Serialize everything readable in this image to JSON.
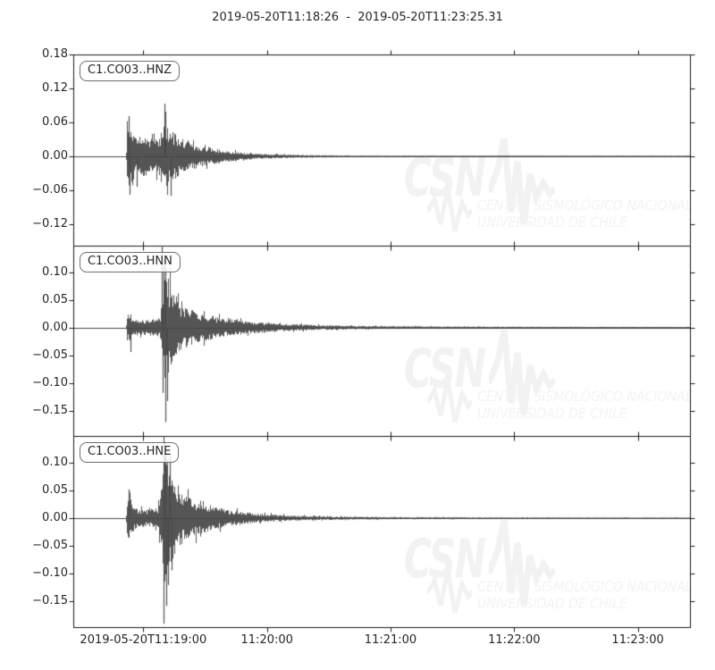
{
  "figure": {
    "title": "2019-05-20T11:18:26  -  2019-05-20T11:23:25.31"
  },
  "watermark": {
    "brand": "CSN",
    "line1": "CENTRO SISMOLÓGICO NACIONAL",
    "line2": "UNIVERSIDAD DE CHILE",
    "color": "#f2f2f2"
  },
  "colors": {
    "trace": "#474747",
    "frame": "#1a1a1a",
    "text": "#262626"
  },
  "chart_data": {
    "type": "line",
    "title": "2019-05-20T11:18:26  -  2019-05-20T11:23:25.31",
    "x_start": "2019-05-20T11:18:26",
    "x_end": "2019-05-20T11:23:25.31",
    "duration_seconds": 299.31,
    "x_ticks": [
      {
        "label": "2019-05-20T11:19:00",
        "t": 0.1136
      },
      {
        "label": "11:20:00",
        "t": 0.3141
      },
      {
        "label": "11:21:00",
        "t": 0.5145
      },
      {
        "label": "11:22:00",
        "t": 0.715
      },
      {
        "label": "11:23:00",
        "t": 0.9154
      }
    ],
    "subplots": [
      {
        "label": "C1.CO03..HNZ",
        "ylim": [
          -0.158,
          0.18
        ],
        "y_ticks": [
          {
            "v": 0.18,
            "label": "0.18"
          },
          {
            "v": 0.12,
            "label": "0.12"
          },
          {
            "v": 0.06,
            "label": "0.06"
          },
          {
            "v": 0.0,
            "label": "0.00"
          },
          {
            "v": -0.06,
            "label": "−0.06"
          },
          {
            "v": -0.12,
            "label": "−0.12"
          }
        ],
        "onset_t": 0.084,
        "seed": 11,
        "envelope": [
          [
            0,
            0.0006
          ],
          [
            0.0838,
            0.0006
          ],
          [
            0.0852,
            0.045
          ],
          [
            0.089,
            0.066
          ],
          [
            0.0935,
            0.046
          ],
          [
            0.1005,
            0.031
          ],
          [
            0.112,
            0.036
          ],
          [
            0.125,
            0.031
          ],
          [
            0.1385,
            0.037
          ],
          [
            0.143,
            0.048
          ],
          [
            0.148,
            0.061
          ],
          [
            0.154,
            0.048
          ],
          [
            0.162,
            0.041
          ],
          [
            0.172,
            0.033
          ],
          [
            0.185,
            0.026
          ],
          [
            0.2,
            0.0205
          ],
          [
            0.22,
            0.0155
          ],
          [
            0.245,
            0.0105
          ],
          [
            0.27,
            0.0073
          ],
          [
            0.3,
            0.0048
          ],
          [
            0.34,
            0.003
          ],
          [
            0.39,
            0.0019
          ],
          [
            0.45,
            0.0013
          ],
          [
            0.55,
            0.0009
          ],
          [
            0.7,
            0.0007
          ],
          [
            1,
            0.0006
          ]
        ],
        "spikes": [
          [
            0.0898,
            0.071
          ],
          [
            0.0918,
            -0.068
          ],
          [
            0.1035,
            -0.054
          ],
          [
            0.1478,
            0.093
          ],
          [
            0.1492,
            0.079
          ],
          [
            0.1575,
            -0.07
          ]
        ]
      },
      {
        "label": "C1.CO03..HNN",
        "ylim": [
          -0.196,
          0.148
        ],
        "y_ticks": [
          {
            "v": 0.1,
            "label": "0.10"
          },
          {
            "v": 0.05,
            "label": "0.05"
          },
          {
            "v": 0.0,
            "label": "0.00"
          },
          {
            "v": -0.05,
            "label": "−0.05"
          },
          {
            "v": -0.1,
            "label": "−0.10"
          },
          {
            "v": -0.15,
            "label": "−0.15"
          }
        ],
        "onset_t": 0.084,
        "seed": 22,
        "envelope": [
          [
            0,
            0.0006
          ],
          [
            0.0838,
            0.0006
          ],
          [
            0.0852,
            0.024
          ],
          [
            0.0895,
            0.031
          ],
          [
            0.0945,
            0.021
          ],
          [
            0.103,
            0.0145
          ],
          [
            0.118,
            0.0135
          ],
          [
            0.132,
            0.0155
          ],
          [
            0.139,
            0.019
          ],
          [
            0.1415,
            0.06
          ],
          [
            0.1455,
            0.118
          ],
          [
            0.151,
            0.093
          ],
          [
            0.157,
            0.068
          ],
          [
            0.165,
            0.051
          ],
          [
            0.175,
            0.041
          ],
          [
            0.188,
            0.033
          ],
          [
            0.205,
            0.026
          ],
          [
            0.225,
            0.0205
          ],
          [
            0.25,
            0.0155
          ],
          [
            0.28,
            0.0115
          ],
          [
            0.315,
            0.0083
          ],
          [
            0.355,
            0.006
          ],
          [
            0.4,
            0.0044
          ],
          [
            0.46,
            0.0031
          ],
          [
            0.53,
            0.0023
          ],
          [
            0.62,
            0.0017
          ],
          [
            0.75,
            0.0013
          ],
          [
            1,
            0.001
          ]
        ],
        "spikes": [
          [
            0.093,
            -0.044
          ],
          [
            0.1435,
            0.146
          ],
          [
            0.1462,
            0.128
          ],
          [
            0.145,
            -0.118
          ],
          [
            0.1493,
            -0.171
          ],
          [
            0.1528,
            -0.133
          ],
          [
            0.1488,
            0.11
          ]
        ]
      },
      {
        "label": "C1.CO03..HNE",
        "ylim": [
          -0.196,
          0.148
        ],
        "y_ticks": [
          {
            "v": 0.1,
            "label": "0.10"
          },
          {
            "v": 0.05,
            "label": "0.05"
          },
          {
            "v": 0.0,
            "label": "0.00"
          },
          {
            "v": -0.05,
            "label": "−0.05"
          },
          {
            "v": -0.1,
            "label": "−0.10"
          },
          {
            "v": -0.15,
            "label": "−0.15"
          }
        ],
        "onset_t": 0.084,
        "seed": 33,
        "envelope": [
          [
            0,
            0.0006
          ],
          [
            0.0838,
            0.0006
          ],
          [
            0.0852,
            0.029
          ],
          [
            0.0895,
            0.043
          ],
          [
            0.094,
            0.027
          ],
          [
            0.1015,
            0.0165
          ],
          [
            0.118,
            0.0155
          ],
          [
            0.135,
            0.0185
          ],
          [
            0.1405,
            0.044
          ],
          [
            0.1445,
            0.108
          ],
          [
            0.1495,
            0.124
          ],
          [
            0.156,
            0.088
          ],
          [
            0.164,
            0.061
          ],
          [
            0.174,
            0.047
          ],
          [
            0.186,
            0.037
          ],
          [
            0.202,
            0.029
          ],
          [
            0.222,
            0.0225
          ],
          [
            0.248,
            0.0155
          ],
          [
            0.275,
            0.0108
          ],
          [
            0.31,
            0.0073
          ],
          [
            0.35,
            0.0049
          ],
          [
            0.4,
            0.0034
          ],
          [
            0.47,
            0.0024
          ],
          [
            0.56,
            0.0017
          ],
          [
            0.7,
            0.0013
          ],
          [
            1,
            0.001
          ]
        ],
        "spikes": [
          [
            0.0905,
            0.052
          ],
          [
            0.1462,
            0.15
          ],
          [
            0.149,
            0.13
          ],
          [
            0.147,
            -0.19
          ],
          [
            0.1502,
            -0.158
          ],
          [
            0.1535,
            -0.12
          ],
          [
            0.156,
            0.118
          ],
          [
            0.1588,
            -0.094
          ]
        ]
      }
    ]
  }
}
